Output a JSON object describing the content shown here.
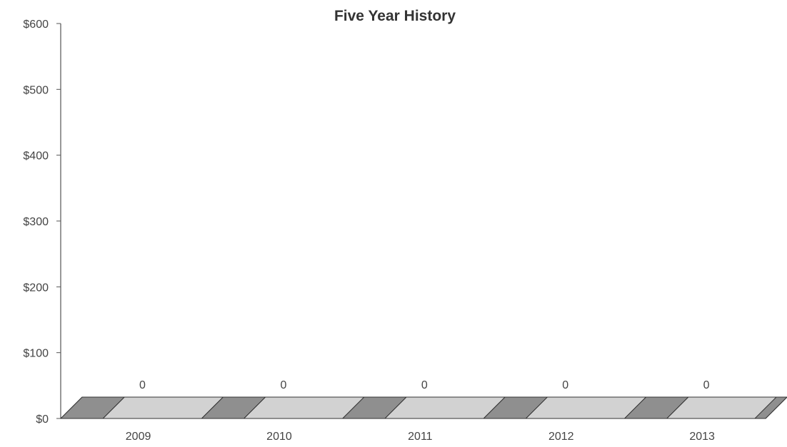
{
  "chart_data": {
    "type": "bar",
    "title": "Five Year History",
    "xlabel": "",
    "ylabel": "",
    "categories": [
      "2009",
      "2010",
      "2011",
      "2012",
      "2013"
    ],
    "values": [
      0,
      0,
      0,
      0,
      0
    ],
    "data_labels": [
      "0",
      "0",
      "0",
      "0",
      "0"
    ],
    "ylim": [
      0,
      600
    ],
    "y_ticks": [
      0,
      100,
      200,
      300,
      400,
      500,
      600
    ],
    "y_tick_labels": [
      "$0",
      "$100",
      "$200",
      "$300",
      "$400",
      "$500",
      "$600"
    ],
    "grid": false,
    "style": "3d",
    "colors": {
      "bar_face": "#d2d2d2",
      "bar_side": "#8f8f8f",
      "axis": "#555555",
      "text": "#444444"
    }
  }
}
